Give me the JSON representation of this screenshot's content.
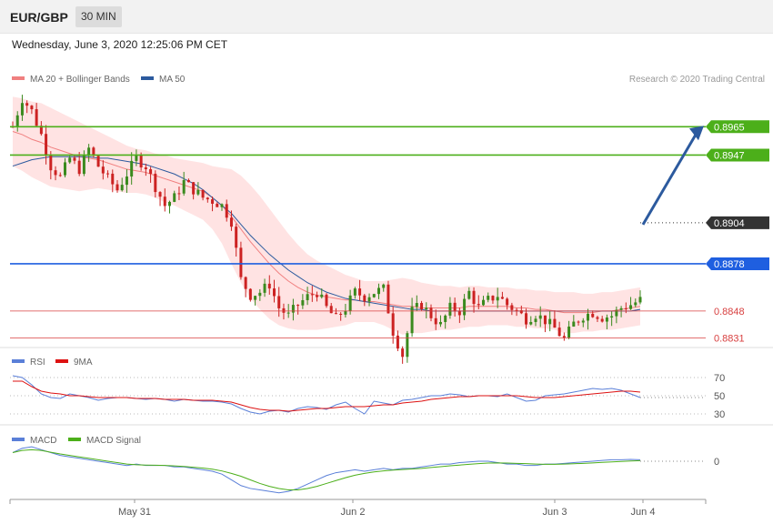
{
  "header": {
    "pair": "EUR/GBP",
    "timeframe": "30 MIN"
  },
  "timestamp": "Wednesday, June 3, 2020 12:25:06 PM CET",
  "copyright": "Research © 2020 Trading Central",
  "colors": {
    "ma20": "#f08080",
    "ma50": "#2c5a9e",
    "up": "#3a8a1e",
    "down": "#cc2222",
    "bands": "#ffe0e0",
    "resistance": "#4caf1a",
    "support": "#1f5fe0",
    "support2": "#d84040",
    "rsi": "#5a7fd8",
    "rsi_ma": "#dd1111",
    "macd": "#5a7fd8",
    "macd_signal": "#4caf1a",
    "arrow": "#2c5a9e"
  },
  "chart_data": [
    {
      "type": "candlestick",
      "title": "EUR/GBP",
      "legend": [
        "MA 20 + Bollinger Bands",
        "MA 50"
      ],
      "legend_position": "top-left",
      "x_ticks": [
        "May 31",
        "Jun 2",
        "Jun 3",
        "Jun 4"
      ],
      "ylim": [
        0.8826,
        0.899
      ],
      "current_price": {
        "value": 0.8904,
        "label": "0.8904"
      },
      "levels": [
        {
          "name": "resistance-2",
          "value": 0.8965,
          "label": "0.8965",
          "kind": "resistance"
        },
        {
          "name": "resistance-1",
          "value": 0.8947,
          "label": "0.8947",
          "kind": "resistance"
        },
        {
          "name": "support-1",
          "value": 0.8878,
          "label": "0.8878",
          "kind": "support"
        },
        {
          "name": "support-2",
          "value": 0.8848,
          "label": "0.8848",
          "kind": "support2"
        },
        {
          "name": "support-3",
          "value": 0.8831,
          "label": "0.8831",
          "kind": "support2"
        }
      ],
      "forecast_arrow": {
        "from": 0.8904,
        "to": 0.8965
      },
      "price_path": [
        0.8965,
        0.8983,
        0.8975,
        0.896,
        0.894,
        0.8933,
        0.8945,
        0.8938,
        0.8951,
        0.894,
        0.8932,
        0.8925,
        0.8935,
        0.8945,
        0.894,
        0.8927,
        0.8915,
        0.892,
        0.893,
        0.8925,
        0.892,
        0.8918,
        0.8915,
        0.8905,
        0.8868,
        0.8858,
        0.886,
        0.8865,
        0.885,
        0.8845,
        0.8852,
        0.8857,
        0.886,
        0.885,
        0.8843,
        0.885,
        0.886,
        0.8857,
        0.886,
        0.8862,
        0.8835,
        0.882,
        0.8848,
        0.8852,
        0.8845,
        0.8839,
        0.885,
        0.8848,
        0.886,
        0.885,
        0.8855,
        0.8858,
        0.8852,
        0.8848,
        0.8843,
        0.8846,
        0.8842,
        0.8837,
        0.883,
        0.884,
        0.8845,
        0.8847,
        0.8844,
        0.8845,
        0.885,
        0.8852,
        0.8855
      ],
      "ma20": [
        0.8962,
        0.896,
        0.8957,
        0.8955,
        0.8952,
        0.895,
        0.8948,
        0.8946,
        0.8945,
        0.8944,
        0.8942,
        0.894,
        0.8938,
        0.8937,
        0.8936,
        0.8934,
        0.8932,
        0.893,
        0.8928,
        0.8926,
        0.8924,
        0.892,
        0.8915,
        0.8908,
        0.89,
        0.8892,
        0.8885,
        0.8878,
        0.8872,
        0.8867,
        0.8863,
        0.886,
        0.8858,
        0.8857,
        0.8856,
        0.8855,
        0.8855,
        0.8854,
        0.8854,
        0.8853,
        0.8852,
        0.8851,
        0.8851,
        0.885,
        0.885,
        0.885,
        0.885,
        0.885,
        0.8851,
        0.8851,
        0.8851,
        0.8851,
        0.8851,
        0.885,
        0.885,
        0.8849,
        0.8849,
        0.8848,
        0.8847,
        0.8847,
        0.8847,
        0.8847,
        0.8848,
        0.8848,
        0.8849,
        0.885,
        0.8851
      ],
      "ma50": [
        0.894,
        0.8942,
        0.8944,
        0.8945,
        0.8946,
        0.8946,
        0.8946,
        0.8946,
        0.8946,
        0.8945,
        0.8945,
        0.8944,
        0.8943,
        0.8942,
        0.8941,
        0.8939,
        0.8937,
        0.8935,
        0.8932,
        0.8929,
        0.8925,
        0.892,
        0.8915,
        0.891,
        0.8903,
        0.8896,
        0.889,
        0.8884,
        0.8879,
        0.8874,
        0.887,
        0.8866,
        0.8863,
        0.886,
        0.8858,
        0.8856,
        0.8855,
        0.8854,
        0.8853,
        0.8852,
        0.8851,
        0.885,
        0.8849,
        0.8849,
        0.8848,
        0.8848,
        0.8848,
        0.8848,
        0.8848,
        0.8848,
        0.8848,
        0.8848,
        0.8848,
        0.8848,
        0.8848,
        0.8848,
        0.8848,
        0.8848,
        0.8848,
        0.8848,
        0.8848,
        0.8848,
        0.8848,
        0.8848,
        0.8848,
        0.8848,
        0.8849
      ],
      "band_width": [
        0.0022,
        0.0023,
        0.0024,
        0.0025,
        0.0025,
        0.0024,
        0.0023,
        0.0022,
        0.002,
        0.0018,
        0.0017,
        0.0016,
        0.0015,
        0.0014,
        0.0014,
        0.0014,
        0.0015,
        0.0015,
        0.0016,
        0.0017,
        0.0018,
        0.002,
        0.0024,
        0.003,
        0.0034,
        0.0036,
        0.0036,
        0.0035,
        0.0033,
        0.003,
        0.0027,
        0.0024,
        0.0022,
        0.002,
        0.0018,
        0.0016,
        0.0014,
        0.0013,
        0.0013,
        0.0014,
        0.0016,
        0.0018,
        0.0017,
        0.0016,
        0.0015,
        0.0014,
        0.0014,
        0.0013,
        0.0013,
        0.0013,
        0.0012,
        0.0012,
        0.0012,
        0.0012,
        0.0012,
        0.0012,
        0.0012,
        0.0012,
        0.0013,
        0.0013,
        0.0012,
        0.0012,
        0.0012,
        0.0012,
        0.0012,
        0.0012,
        0.0012
      ]
    },
    {
      "type": "line",
      "legend": [
        "RSI",
        "9MA"
      ],
      "ylim": [
        20,
        80
      ],
      "y_ticks": [
        70,
        50,
        30
      ],
      "rsi": [
        72,
        70,
        62,
        52,
        48,
        47,
        52,
        50,
        48,
        45,
        47,
        48,
        48,
        47,
        46,
        47,
        46,
        44,
        46,
        45,
        44,
        44,
        43,
        41,
        36,
        32,
        30,
        33,
        34,
        32,
        36,
        38,
        37,
        35,
        40,
        43,
        36,
        30,
        44,
        42,
        40,
        45,
        46,
        48,
        50,
        50,
        52,
        51,
        49,
        50,
        50,
        49,
        52,
        48,
        44,
        45,
        50,
        51,
        52,
        54,
        56,
        58,
        57,
        58,
        56,
        52,
        48
      ],
      "rsi_ma": [
        66,
        66,
        60,
        55,
        53,
        52,
        50,
        50,
        49,
        48,
        48,
        48,
        48,
        47,
        47,
        47,
        46,
        46,
        46,
        45,
        45,
        45,
        44,
        43,
        40,
        37,
        35,
        34,
        34,
        33,
        34,
        35,
        36,
        36,
        37,
        38,
        38,
        38,
        39,
        40,
        40,
        42,
        43,
        44,
        46,
        47,
        48,
        49,
        49,
        50,
        50,
        50,
        50,
        50,
        49,
        48,
        48,
        48,
        49,
        50,
        51,
        52,
        53,
        54,
        55,
        55,
        54
      ]
    },
    {
      "type": "line",
      "legend": [
        "MACD",
        "MACD Signal"
      ],
      "ylim": [
        -2.6,
        1.2
      ],
      "y_ticks": [
        0
      ],
      "macd": [
        0.6,
        0.9,
        1.0,
        0.8,
        0.6,
        0.4,
        0.3,
        0.2,
        0.1,
        0.0,
        -0.1,
        -0.2,
        -0.3,
        -0.2,
        -0.3,
        -0.3,
        -0.3,
        -0.4,
        -0.4,
        -0.5,
        -0.6,
        -0.7,
        -0.9,
        -1.3,
        -1.7,
        -1.9,
        -2.0,
        -2.1,
        -2.2,
        -2.1,
        -1.9,
        -1.6,
        -1.3,
        -1.0,
        -0.8,
        -0.7,
        -0.6,
        -0.7,
        -0.6,
        -0.5,
        -0.6,
        -0.5,
        -0.5,
        -0.4,
        -0.3,
        -0.2,
        -0.2,
        -0.1,
        -0.05,
        0.0,
        0.0,
        -0.1,
        -0.2,
        -0.2,
        -0.3,
        -0.3,
        -0.2,
        -0.2,
        -0.15,
        -0.1,
        -0.05,
        0.0,
        0.05,
        0.1,
        0.1,
        0.12,
        0.1
      ],
      "macd_signal": [
        0.6,
        0.75,
        0.8,
        0.75,
        0.62,
        0.5,
        0.4,
        0.3,
        0.2,
        0.1,
        0.0,
        -0.1,
        -0.2,
        -0.25,
        -0.27,
        -0.28,
        -0.3,
        -0.33,
        -0.37,
        -0.42,
        -0.48,
        -0.56,
        -0.68,
        -0.85,
        -1.05,
        -1.3,
        -1.55,
        -1.75,
        -1.9,
        -2.0,
        -2.0,
        -1.9,
        -1.75,
        -1.55,
        -1.35,
        -1.15,
        -0.98,
        -0.85,
        -0.75,
        -0.68,
        -0.62,
        -0.58,
        -0.54,
        -0.5,
        -0.44,
        -0.38,
        -0.32,
        -0.27,
        -0.22,
        -0.17,
        -0.13,
        -0.12,
        -0.13,
        -0.15,
        -0.17,
        -0.2,
        -0.22,
        -0.22,
        -0.2,
        -0.18,
        -0.15,
        -0.12,
        -0.08,
        -0.05,
        -0.02,
        0.01,
        0.04
      ]
    }
  ]
}
